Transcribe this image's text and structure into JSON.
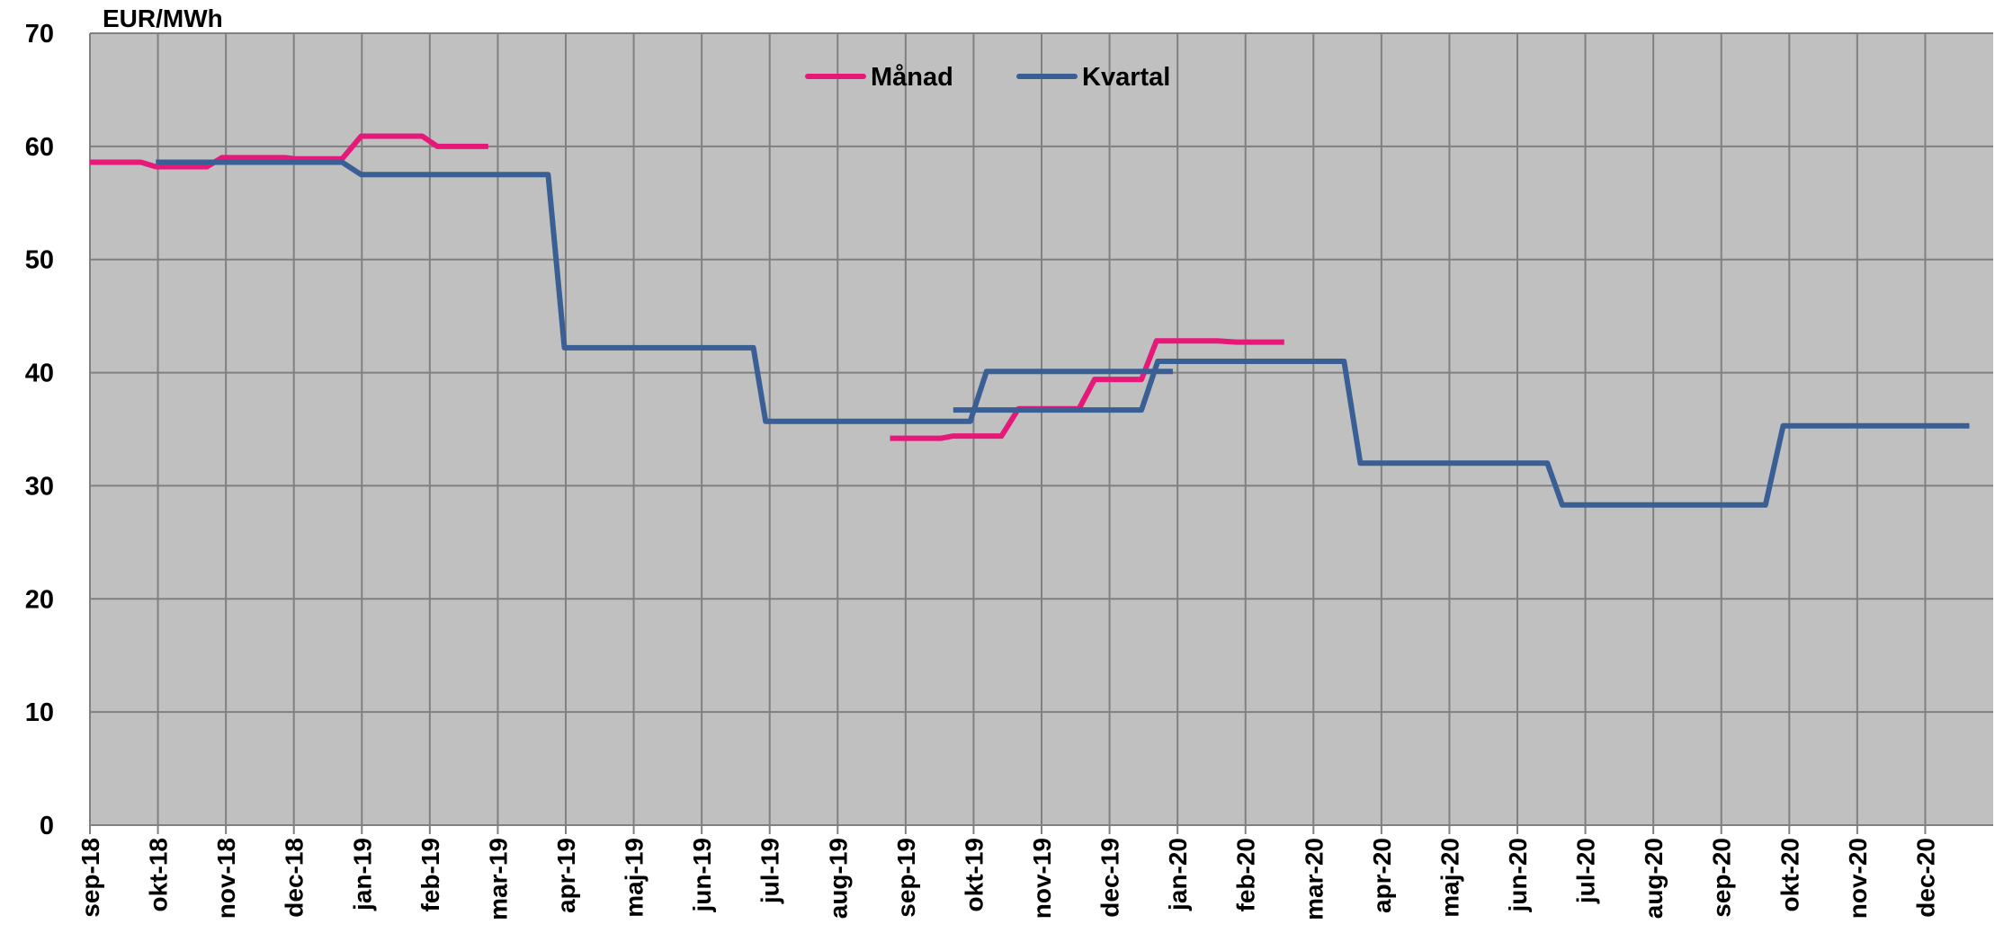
{
  "chart_data": {
    "type": "line",
    "y_label": "EUR/MWh",
    "xlim": [
      0,
      28
    ],
    "xticks": [
      {
        "value": 0,
        "label": "sep-18"
      },
      {
        "value": 1,
        "label": "okt-18"
      },
      {
        "value": 2,
        "label": "nov-18"
      },
      {
        "value": 3,
        "label": "dec-18"
      },
      {
        "value": 4,
        "label": "jan-19"
      },
      {
        "value": 5,
        "label": "feb-19"
      },
      {
        "value": 6,
        "label": "mar-19"
      },
      {
        "value": 7,
        "label": "apr-19"
      },
      {
        "value": 8,
        "label": "maj-19"
      },
      {
        "value": 9,
        "label": "jun-19"
      },
      {
        "value": 10,
        "label": "jul-19"
      },
      {
        "value": 11,
        "label": "aug-19"
      },
      {
        "value": 12,
        "label": "sep-19"
      },
      {
        "value": 13,
        "label": "okt-19"
      },
      {
        "value": 14,
        "label": "nov-19"
      },
      {
        "value": 15,
        "label": "dec-19"
      },
      {
        "value": 16,
        "label": "jan-20"
      },
      {
        "value": 17,
        "label": "feb-20"
      },
      {
        "value": 18,
        "label": "mar-20"
      },
      {
        "value": 19,
        "label": "apr-20"
      },
      {
        "value": 20,
        "label": "maj-20"
      },
      {
        "value": 21,
        "label": "jun-20"
      },
      {
        "value": 22,
        "label": "jul-20"
      },
      {
        "value": 23,
        "label": "aug-20"
      },
      {
        "value": 24,
        "label": "sep-20"
      },
      {
        "value": 25,
        "label": "okt-20"
      },
      {
        "value": 26,
        "label": "nov-20"
      },
      {
        "value": 27,
        "label": "dec-20"
      }
    ],
    "ylim": [
      0,
      70
    ],
    "yticks": [
      0,
      10,
      20,
      30,
      40,
      50,
      60,
      70
    ],
    "grid": true,
    "legend": "top",
    "series": [
      {
        "name": "Månad",
        "color": "#e6197a",
        "x": [
          0,
          0.75,
          0.97,
          1.72,
          1.94,
          2.87,
          3.02,
          3.71,
          3.99,
          4.89,
          5.11,
          5.86,
          null,
          11.77,
          12.52,
          12.7,
          13.41,
          13.66,
          14.55,
          14.78,
          15.47,
          15.69,
          16.59,
          16.87,
          17.57
        ],
        "values": [
          58.6,
          58.6,
          58.2,
          58.2,
          59.0,
          59.0,
          58.9,
          58.9,
          60.9,
          60.9,
          60.0,
          60.0,
          null,
          34.2,
          34.2,
          34.4,
          34.4,
          36.8,
          36.8,
          39.4,
          39.4,
          42.8,
          42.8,
          42.7,
          42.7
        ]
      },
      {
        "name": "Kvartal",
        "color": "#3a5f94",
        "x": [
          0.97,
          3.71,
          3.99,
          6.74,
          6.98,
          9.76,
          9.94,
          12.95,
          13.19,
          15.93,
          null,
          12.7,
          15.47,
          15.71,
          18.45,
          18.69,
          21.44,
          21.66,
          24.65,
          24.91,
          27.65
        ],
        "values": [
          58.6,
          58.6,
          57.5,
          57.5,
          42.2,
          42.2,
          35.7,
          35.7,
          40.1,
          40.1,
          null,
          36.7,
          36.7,
          41.0,
          41.0,
          32.0,
          32.0,
          28.3,
          28.3,
          35.3,
          35.3
        ]
      }
    ]
  }
}
